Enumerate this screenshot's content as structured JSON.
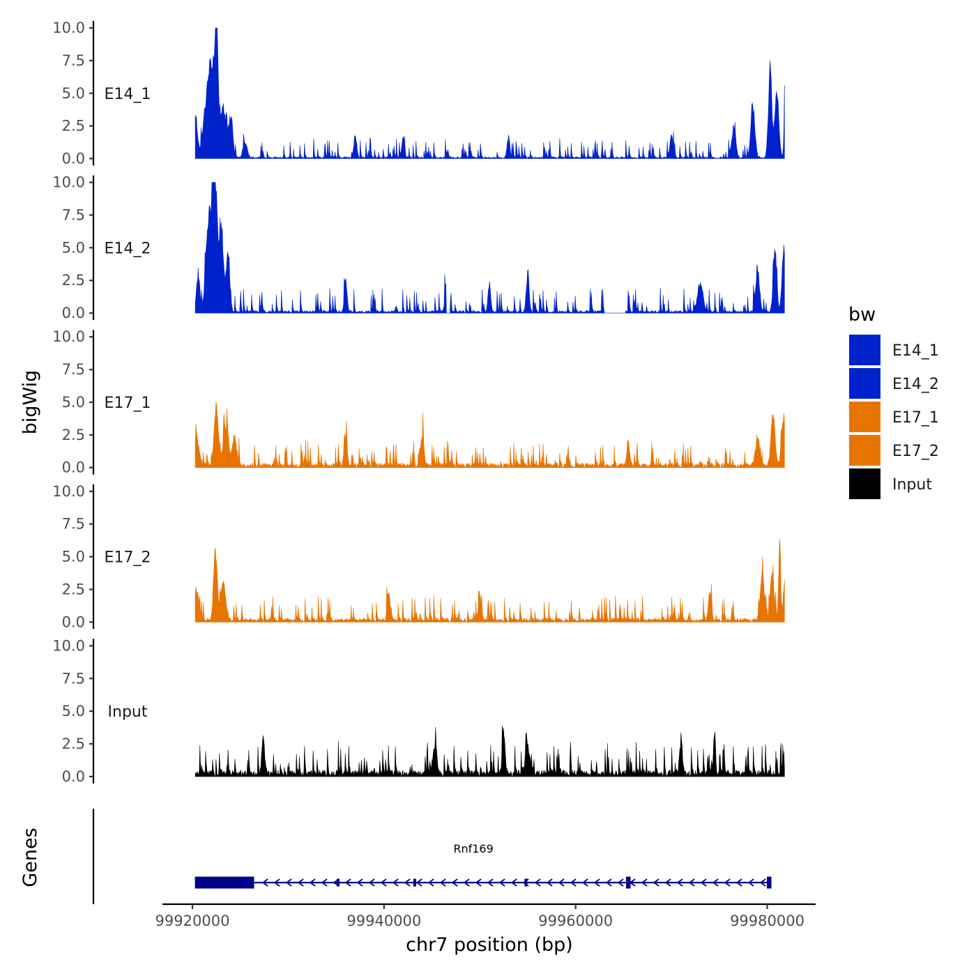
{
  "chart_data": {
    "type": "area",
    "title": "",
    "xlabel": "chr7 position (bp)",
    "ylabel_tracks": "bigWig",
    "ylabel_genes": "Genes",
    "xlim": [
      99920000,
      99982000
    ],
    "x_ticks": [
      99920000,
      99940000,
      99960000,
      99980000
    ],
    "x_tick_labels": [
      "99920000",
      "99940000",
      "99960000",
      "99980000"
    ],
    "ylim": [
      0,
      10
    ],
    "y_ticks": [
      0,
      2.5,
      5,
      7.5,
      10
    ],
    "y_tick_labels": [
      "0.0",
      "2.5",
      "5.0",
      "7.5",
      "10.0"
    ],
    "colors": {
      "E14": "#0022cc",
      "E17": "#e87400",
      "Input": "#000000",
      "gene": "#00008b"
    },
    "legend": {
      "title": "bw",
      "position": "right",
      "entries": [
        {
          "label": "E14_1",
          "color": "#0022cc"
        },
        {
          "label": "E14_2",
          "color": "#0022cc"
        },
        {
          "label": "E17_1",
          "color": "#e87400"
        },
        {
          "label": "E17_2",
          "color": "#e87400"
        },
        {
          "label": "Input",
          "color": "#000000"
        }
      ]
    },
    "tracks": [
      {
        "name": "E14_1",
        "color": "#0022cc",
        "baseline": 0.15,
        "noise": 0.55,
        "seed": 11,
        "peaks": [
          {
            "x": 99920300,
            "h": 3.5,
            "w": 300
          },
          {
            "x": 99921500,
            "h": 4.2,
            "w": 500
          },
          {
            "x": 99922000,
            "h": 5.5,
            "w": 400
          },
          {
            "x": 99922500,
            "h": 9.7,
            "w": 250
          },
          {
            "x": 99923200,
            "h": 4.0,
            "w": 400
          },
          {
            "x": 99924000,
            "h": 3.2,
            "w": 300
          },
          {
            "x": 99925500,
            "h": 1.2,
            "w": 300
          },
          {
            "x": 99937000,
            "h": 1.8,
            "w": 200
          },
          {
            "x": 99942000,
            "h": 1.5,
            "w": 200
          },
          {
            "x": 99953000,
            "h": 1.6,
            "w": 200
          },
          {
            "x": 99970000,
            "h": 1.9,
            "w": 200
          },
          {
            "x": 99976500,
            "h": 2.3,
            "w": 300
          },
          {
            "x": 99978500,
            "h": 3.8,
            "w": 300
          },
          {
            "x": 99980300,
            "h": 6.8,
            "w": 250
          },
          {
            "x": 99981000,
            "h": 5.0,
            "w": 300
          },
          {
            "x": 99981900,
            "h": 6.9,
            "w": 150
          }
        ]
      },
      {
        "name": "E14_2",
        "color": "#0022cc",
        "baseline": 0.2,
        "noise": 0.7,
        "seed": 23,
        "gaps": [
          [
            99946500,
            99946900
          ],
          [
            99963000,
            99965200
          ]
        ],
        "peaks": [
          {
            "x": 99920600,
            "h": 3.0,
            "w": 250
          },
          {
            "x": 99921700,
            "h": 7.5,
            "w": 400
          },
          {
            "x": 99922300,
            "h": 9.9,
            "w": 350
          },
          {
            "x": 99923000,
            "h": 6.8,
            "w": 350
          },
          {
            "x": 99923700,
            "h": 4.3,
            "w": 250
          },
          {
            "x": 99936000,
            "h": 2.3,
            "w": 200
          },
          {
            "x": 99946500,
            "h": 2.0,
            "w": 200
          },
          {
            "x": 99951000,
            "h": 2.1,
            "w": 200
          },
          {
            "x": 99955000,
            "h": 3.2,
            "w": 200
          },
          {
            "x": 99973000,
            "h": 2.2,
            "w": 400
          },
          {
            "x": 99979000,
            "h": 3.0,
            "w": 300
          },
          {
            "x": 99980800,
            "h": 4.6,
            "w": 250
          },
          {
            "x": 99981700,
            "h": 4.4,
            "w": 250
          }
        ]
      },
      {
        "name": "E17_1",
        "color": "#e87400",
        "baseline": 0.35,
        "noise": 0.7,
        "seed": 37,
        "peaks": [
          {
            "x": 99920400,
            "h": 2.0,
            "w": 400
          },
          {
            "x": 99922500,
            "h": 4.8,
            "w": 300
          },
          {
            "x": 99923500,
            "h": 2.8,
            "w": 400
          },
          {
            "x": 99924400,
            "h": 2.2,
            "w": 300
          },
          {
            "x": 99936000,
            "h": 2.5,
            "w": 200
          },
          {
            "x": 99944000,
            "h": 2.6,
            "w": 200
          },
          {
            "x": 99965500,
            "h": 1.9,
            "w": 200
          },
          {
            "x": 99979000,
            "h": 2.2,
            "w": 300
          },
          {
            "x": 99980600,
            "h": 4.0,
            "w": 300
          },
          {
            "x": 99981700,
            "h": 3.8,
            "w": 300
          }
        ]
      },
      {
        "name": "E17_2",
        "color": "#e87400",
        "baseline": 0.3,
        "noise": 0.7,
        "seed": 53,
        "peaks": [
          {
            "x": 99920500,
            "h": 2.2,
            "w": 300
          },
          {
            "x": 99922400,
            "h": 5.4,
            "w": 250
          },
          {
            "x": 99923200,
            "h": 2.8,
            "w": 400
          },
          {
            "x": 99940500,
            "h": 2.3,
            "w": 200
          },
          {
            "x": 99950000,
            "h": 2.0,
            "w": 200
          },
          {
            "x": 99974000,
            "h": 2.3,
            "w": 200
          },
          {
            "x": 99979500,
            "h": 3.5,
            "w": 300
          },
          {
            "x": 99980500,
            "h": 3.8,
            "w": 250
          },
          {
            "x": 99981300,
            "h": 6.1,
            "w": 150
          },
          {
            "x": 99981900,
            "h": 4.0,
            "w": 250
          }
        ]
      },
      {
        "name": "Input",
        "color": "#000000",
        "baseline": 0.5,
        "noise": 0.9,
        "seed": 71,
        "peaks": [
          {
            "x": 99927400,
            "h": 2.8,
            "w": 200
          },
          {
            "x": 99945300,
            "h": 2.2,
            "w": 300
          },
          {
            "x": 99952500,
            "h": 3.3,
            "w": 200
          },
          {
            "x": 99955000,
            "h": 2.3,
            "w": 300
          },
          {
            "x": 99971000,
            "h": 2.6,
            "w": 200
          },
          {
            "x": 99974500,
            "h": 3.4,
            "w": 150
          }
        ]
      }
    ],
    "gene_track": {
      "name": "Rnf169",
      "strand": "-",
      "start": 99920300,
      "end": 99980400,
      "exons": [
        {
          "start": 99920300,
          "end": 99926400,
          "thick": true
        },
        {
          "start": 99935100,
          "end": 99935250,
          "thick": false
        },
        {
          "start": 99943100,
          "end": 99943250,
          "thick": false
        },
        {
          "start": 99954700,
          "end": 99954850,
          "thick": false
        },
        {
          "start": 99965300,
          "end": 99965700,
          "thick": true
        },
        {
          "start": 99980000,
          "end": 99980400,
          "thick": true
        }
      ]
    }
  }
}
